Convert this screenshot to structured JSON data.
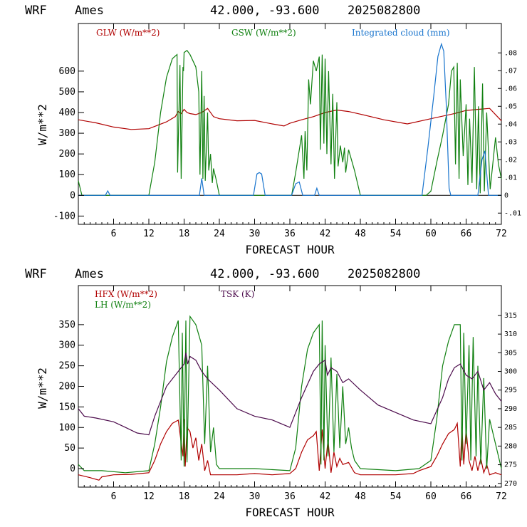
{
  "colors": {
    "red": "#b00000",
    "green": "#108010",
    "blue": "#1874cd",
    "purple": "#4b0a4b",
    "axis": "#000000"
  },
  "chart_data": [
    {
      "type": "line",
      "header": {
        "model": "WRF",
        "site": "Ames",
        "coords": "42.000, -93.600",
        "init": "2025082800"
      },
      "xlabel": "FORECAST HOUR",
      "ylabel": "W/m**2",
      "xlim": [
        0,
        72
      ],
      "xticks": [
        6,
        12,
        18,
        24,
        30,
        36,
        42,
        48,
        54,
        60,
        66,
        72
      ],
      "ylim": [
        -140,
        830
      ],
      "yticks": [
        -100,
        0,
        100,
        200,
        300,
        400,
        500,
        600
      ],
      "right_ylim": [
        -0.0163,
        0.0965
      ],
      "right_yticks": [
        "-.01",
        "0",
        ".01",
        ".02",
        ".03",
        ".04",
        ".05",
        ".06",
        ".07",
        ".08"
      ],
      "right_ytick_values": [
        -0.01,
        0,
        0.01,
        0.02,
        0.03,
        0.04,
        0.05,
        0.06,
        0.07,
        0.08
      ],
      "series": [
        {
          "name": "GLW (W/m**2)",
          "color": "#b00000",
          "axis": "left",
          "x": [
            0,
            3,
            6,
            9,
            12,
            15,
            16.5,
            17,
            17.5,
            18,
            18.5,
            19,
            20,
            21,
            22,
            23,
            24,
            27,
            30,
            33,
            35,
            36,
            38,
            40,
            42,
            44,
            46,
            48,
            52,
            56,
            60,
            64,
            66,
            68,
            70,
            72
          ],
          "y": [
            365,
            350,
            330,
            318,
            322,
            355,
            380,
            405,
            395,
            415,
            400,
            395,
            390,
            400,
            420,
            380,
            370,
            360,
            362,
            345,
            335,
            348,
            365,
            380,
            400,
            412,
            405,
            392,
            365,
            345,
            370,
            395,
            410,
            415,
            420,
            360
          ]
        },
        {
          "name": "GSW (W/m**2)",
          "color": "#108010",
          "axis": "left",
          "x": [
            0,
            0.6,
            11.5,
            12,
            13,
            14,
            15,
            16,
            16.8,
            16.9,
            17.3,
            17.5,
            17.8,
            17.9,
            18,
            18.5,
            19,
            20,
            20.5,
            20.7,
            21.0,
            21.2,
            21.4,
            21.6,
            22.0,
            22.2,
            22.5,
            22.8,
            23,
            23.5,
            24,
            25,
            36.3,
            37,
            38,
            38.4,
            38.6,
            38.9,
            39.2,
            39.5,
            40,
            40.5,
            41,
            41.2,
            41.5,
            41.8,
            42,
            42.3,
            42.6,
            43,
            43.3,
            43.6,
            44,
            44.2,
            44.6,
            45,
            45.3,
            45.5,
            46,
            47,
            48,
            48.5,
            59.2,
            60,
            61,
            62,
            63,
            63.5,
            63.9,
            64.2,
            64.5,
            64.8,
            65.0,
            65.5,
            66,
            66.3,
            66.6,
            67,
            67.4,
            67.8,
            68.1,
            68.4,
            68.8,
            69.1,
            69.5,
            70.1,
            71,
            71.5,
            72
          ],
          "y": [
            70,
            0,
            0,
            0,
            160,
            400,
            570,
            660,
            680,
            110,
            630,
            80,
            620,
            600,
            690,
            700,
            680,
            620,
            500,
            100,
            600,
            80,
            480,
            70,
            400,
            120,
            200,
            60,
            130,
            70,
            0,
            0,
            0,
            110,
            290,
            80,
            310,
            120,
            560,
            440,
            650,
            600,
            670,
            220,
            680,
            250,
            660,
            200,
            600,
            150,
            490,
            80,
            450,
            140,
            240,
            160,
            230,
            110,
            220,
            120,
            0,
            0,
            0,
            20,
            160,
            290,
            440,
            600,
            620,
            150,
            640,
            80,
            560,
            190,
            440,
            50,
            370,
            60,
            620,
            30,
            430,
            10,
            540,
            20,
            400,
            30,
            280,
            150,
            80
          ]
        },
        {
          "name": "Integrated cloud (mm)",
          "color": "#1874cd",
          "axis": "right",
          "x": [
            0,
            4.6,
            5.0,
            5.4,
            20.6,
            21.0,
            21.4,
            29.8,
            30.4,
            30.8,
            31.2,
            31.8,
            36.3,
            37.0,
            37.6,
            38.2,
            40.2,
            40.6,
            41.0,
            58.5,
            59.5,
            60.5,
            61.2,
            61.8,
            62.2,
            62.6,
            63.1,
            63.4,
            68,
            68.7,
            69.2,
            69.8,
            72
          ],
          "y": [
            0,
            0,
            0.0025,
            0,
            0,
            0.0095,
            0,
            0,
            0.012,
            0.0128,
            0.012,
            0,
            0,
            0.0065,
            0.0075,
            0,
            0,
            0.004,
            0,
            0,
            0.027,
            0.056,
            0.078,
            0.085,
            0.081,
            0.052,
            0.004,
            0,
            0,
            0.02,
            0.025,
            0,
            0
          ]
        }
      ],
      "legend": [
        "GLW (W/m**2)",
        "GSW (W/m**2)",
        "Integrated cloud (mm)"
      ]
    },
    {
      "type": "line",
      "header": {
        "model": "WRF",
        "site": "Ames",
        "coords": "42.000, -93.600",
        "init": "2025082800"
      },
      "xlabel": "FORECAST HOUR",
      "ylabel": "W/m**2",
      "xlim": [
        0,
        72
      ],
      "xticks": [
        6,
        12,
        18,
        24,
        30,
        36,
        42,
        48,
        54,
        60,
        66,
        72
      ],
      "ylim": [
        -45,
        445
      ],
      "yticks": [
        0,
        50,
        100,
        150,
        200,
        250,
        300,
        350
      ],
      "right_ylim": [
        269,
        323
      ],
      "right_yticks": [
        "270",
        "275",
        "280",
        "285",
        "290",
        "295",
        "300",
        "305",
        "310",
        "315"
      ],
      "right_ytick_values": [
        270,
        275,
        280,
        285,
        290,
        295,
        300,
        305,
        310,
        315
      ],
      "series": [
        {
          "name": "HFX (W/m**2)",
          "color": "#b00000",
          "axis": "left",
          "x": [
            0,
            2,
            3.5,
            4,
            6,
            9,
            12,
            13,
            14,
            15,
            16,
            17,
            17.8,
            18,
            18.2,
            18.5,
            19,
            19.5,
            20,
            20.5,
            21,
            21.5,
            22,
            22.5,
            23,
            24,
            27,
            30,
            33,
            36,
            37,
            38,
            39,
            40,
            40.5,
            41,
            41.5,
            42,
            42.5,
            43,
            43.5,
            44,
            44.5,
            45,
            46,
            47,
            48,
            51,
            54,
            57,
            58,
            60,
            61,
            62,
            63,
            64,
            64.5,
            65,
            65.3,
            65.6,
            66,
            66.5,
            67,
            67.5,
            68,
            68.5,
            69,
            69.5,
            70,
            71,
            72
          ],
          "y": [
            -15,
            -22,
            -28,
            -20,
            -15,
            -14,
            -10,
            20,
            60,
            90,
            110,
            118,
            30,
            120,
            5,
            100,
            90,
            50,
            75,
            20,
            60,
            -5,
            20,
            -15,
            -15,
            -15,
            -15,
            -12,
            -15,
            -12,
            0,
            40,
            70,
            80,
            90,
            -5,
            95,
            0,
            70,
            -10,
            40,
            5,
            25,
            10,
            15,
            -10,
            -15,
            -15,
            -15,
            -12,
            -5,
            5,
            30,
            60,
            85,
            95,
            110,
            5,
            100,
            10,
            95,
            20,
            -5,
            30,
            -5,
            25,
            -10,
            10,
            -15,
            -10,
            -15
          ]
        },
        {
          "name": "LH (W/m**2)",
          "color": "#108010",
          "axis": "left",
          "x": [
            0,
            1,
            4,
            8,
            12,
            13,
            14,
            15,
            16,
            17,
            17.5,
            17.7,
            18,
            18.3,
            18.5,
            19,
            20,
            21,
            21.5,
            22,
            22.5,
            23,
            23.5,
            24,
            30,
            36,
            37,
            38,
            39,
            40,
            41,
            41.3,
            41.5,
            41.8,
            42,
            42.5,
            43,
            43.5,
            44,
            44.5,
            45,
            45.5,
            46,
            46.5,
            47,
            48,
            54,
            58,
            60,
            61,
            62,
            63,
            64,
            65,
            65.3,
            65.6,
            66,
            66.5,
            66.8,
            67.2,
            67.7,
            68,
            68.5,
            69,
            69.5,
            70,
            71,
            72
          ],
          "y": [
            10,
            -5,
            -5,
            -10,
            -5,
            60,
            150,
            260,
            320,
            360,
            20,
            330,
            5,
            360,
            15,
            370,
            350,
            300,
            60,
            250,
            40,
            100,
            10,
            0,
            0,
            -5,
            50,
            200,
            290,
            330,
            350,
            10,
            360,
            20,
            300,
            30,
            270,
            40,
            230,
            50,
            200,
            60,
            100,
            50,
            20,
            0,
            -5,
            0,
            20,
            120,
            250,
            310,
            350,
            350,
            20,
            330,
            60,
            300,
            20,
            320,
            30,
            250,
            10,
            220,
            0,
            120,
            60,
            0
          ]
        },
        {
          "name": "TSK (K)",
          "color": "#4b0a4b",
          "axis": "right",
          "x": [
            0,
            1,
            3,
            6,
            8,
            10,
            12,
            13,
            15,
            17,
            18,
            18.3,
            18.6,
            19,
            20,
            21,
            22,
            24,
            27,
            30,
            33,
            36,
            38,
            40,
            41,
            42,
            42.4,
            43,
            44,
            45,
            46,
            48,
            51,
            54,
            57,
            60,
            62,
            63,
            64,
            65,
            66,
            67,
            68,
            69,
            70,
            71,
            72
          ],
          "y": [
            290,
            288,
            287.5,
            286.5,
            285,
            283.5,
            283,
            288,
            296,
            300,
            302,
            305,
            302,
            304,
            303,
            300,
            298,
            295,
            290,
            288,
            287,
            285,
            293,
            300,
            302,
            303,
            299,
            301,
            300,
            297,
            298,
            295,
            291,
            289,
            287,
            286,
            293,
            298,
            301,
            302,
            299,
            298,
            300,
            295,
            297,
            294,
            292
          ]
        }
      ],
      "legend": [
        "HFX (W/m**2)",
        "LH (W/m**2)",
        "TSK (K)"
      ]
    }
  ]
}
